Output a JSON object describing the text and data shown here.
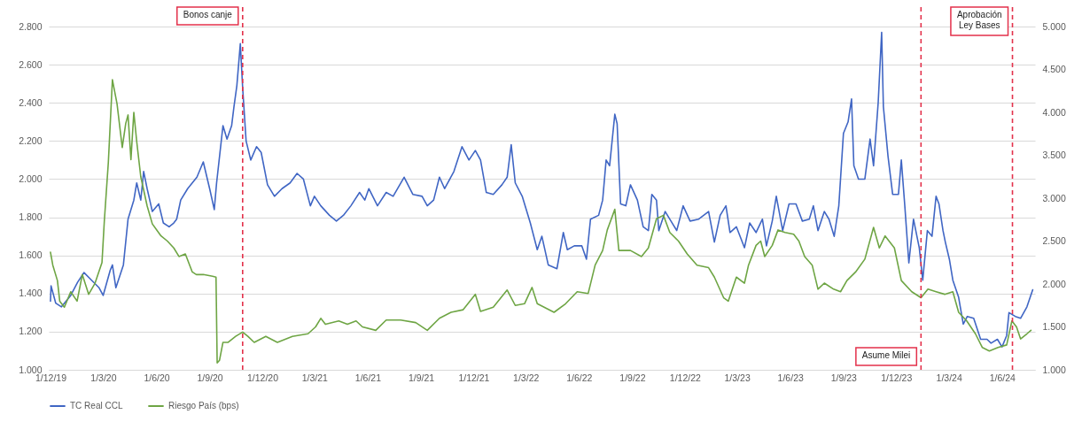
{
  "chart_data": {
    "type": "line",
    "xlim": [
      "2019-11-28",
      "2024-07-28"
    ],
    "xticks": [
      {
        "value": "2019-12-01",
        "label": "1/12/19"
      },
      {
        "value": "2020-03-01",
        "label": "1/3/20"
      },
      {
        "value": "2020-06-01",
        "label": "1/6/20"
      },
      {
        "value": "2020-09-01",
        "label": "1/9/20"
      },
      {
        "value": "2020-12-01",
        "label": "1/12/20"
      },
      {
        "value": "2021-03-01",
        "label": "1/3/21"
      },
      {
        "value": "2021-06-01",
        "label": "1/6/21"
      },
      {
        "value": "2021-09-01",
        "label": "1/9/21"
      },
      {
        "value": "2021-12-01",
        "label": "1/12/21"
      },
      {
        "value": "2022-03-01",
        "label": "1/3/22"
      },
      {
        "value": "2022-06-01",
        "label": "1/6/22"
      },
      {
        "value": "2022-09-01",
        "label": "1/9/22"
      },
      {
        "value": "2022-12-01",
        "label": "1/12/22"
      },
      {
        "value": "2023-03-01",
        "label": "1/3/23"
      },
      {
        "value": "2023-06-01",
        "label": "1/6/23"
      },
      {
        "value": "2023-09-01",
        "label": "1/9/23"
      },
      {
        "value": "2023-12-01",
        "label": "1/12/23"
      },
      {
        "value": "2024-03-01",
        "label": "1/3/24"
      },
      {
        "value": "2024-06-01",
        "label": "1/6/24"
      }
    ],
    "ylim": [
      1000,
      2800
    ],
    "yticks": [
      {
        "value": 1000,
        "label": "1.000"
      },
      {
        "value": 1200,
        "label": "1.200"
      },
      {
        "value": 1400,
        "label": "1.400"
      },
      {
        "value": 1600,
        "label": "1.600"
      },
      {
        "value": 1800,
        "label": "1.800"
      },
      {
        "value": 2000,
        "label": "2.000"
      },
      {
        "value": 2200,
        "label": "2.200"
      },
      {
        "value": 2400,
        "label": "2.400"
      },
      {
        "value": 2600,
        "label": "2.600"
      },
      {
        "value": 2800,
        "label": "2.800"
      }
    ],
    "y2lim": [
      1000,
      5000
    ],
    "y2ticks": [
      {
        "value": 1000,
        "label": "1.000"
      },
      {
        "value": 1500,
        "label": "1.500"
      },
      {
        "value": 2000,
        "label": "2.000"
      },
      {
        "value": 2500,
        "label": "2.500"
      },
      {
        "value": 3000,
        "label": "3.000"
      },
      {
        "value": 3500,
        "label": "3.500"
      },
      {
        "value": 4000,
        "label": "4.000"
      },
      {
        "value": 4500,
        "label": "4.500"
      },
      {
        "value": 5000,
        "label": "5.000"
      }
    ],
    "grid": "y",
    "legend": "bottom",
    "series": [
      {
        "name": "TC Real CCL",
        "color": "#4066c4",
        "x": [
          "2019-12-01",
          "2019-12-02",
          "2019-12-10",
          "2019-12-20",
          "2020-01-05",
          "2020-01-17",
          "2020-01-28",
          "2020-02-10",
          "2020-02-23",
          "2020-03-01",
          "2020-03-13",
          "2020-03-17",
          "2020-03-23",
          "2020-04-05",
          "2020-04-13",
          "2020-04-23",
          "2020-04-28",
          "2020-05-05",
          "2020-05-10",
          "2020-05-16",
          "2020-05-25",
          "2020-06-05",
          "2020-06-13",
          "2020-06-23",
          "2020-07-01",
          "2020-07-06",
          "2020-07-13",
          "2020-07-25",
          "2020-08-10",
          "2020-08-21",
          "2020-09-01",
          "2020-09-09",
          "2020-09-13",
          "2020-09-24",
          "2020-10-01",
          "2020-10-09",
          "2020-10-13",
          "2020-10-18",
          "2020-10-24",
          "2020-10-28",
          "2020-11-03",
          "2020-11-11",
          "2020-11-21",
          "2020-11-29",
          "2020-12-10",
          "2020-12-22",
          "2021-01-04",
          "2021-01-18",
          "2021-01-30",
          "2021-02-10",
          "2021-02-22",
          "2021-03-01",
          "2021-03-12",
          "2021-03-27",
          "2021-04-08",
          "2021-04-20",
          "2021-05-03",
          "2021-05-18",
          "2021-05-27",
          "2021-06-03",
          "2021-06-18",
          "2021-07-03",
          "2021-07-15",
          "2021-08-03",
          "2021-08-18",
          "2021-09-03",
          "2021-09-12",
          "2021-09-23",
          "2021-10-03",
          "2021-10-12",
          "2021-10-28",
          "2021-11-11",
          "2021-11-23",
          "2021-12-04",
          "2021-12-13",
          "2021-12-23",
          "2022-01-04",
          "2022-01-19",
          "2022-01-28",
          "2022-02-04",
          "2022-02-11",
          "2022-02-23",
          "2022-03-09",
          "2022-03-21",
          "2022-03-29",
          "2022-04-09",
          "2022-04-24",
          "2022-05-05",
          "2022-05-12",
          "2022-05-24",
          "2022-06-06",
          "2022-06-14",
          "2022-06-21",
          "2022-07-05",
          "2022-07-12",
          "2022-07-18",
          "2022-07-24",
          "2022-08-02",
          "2022-08-06",
          "2022-08-12",
          "2022-08-21",
          "2022-08-29",
          "2022-09-10",
          "2022-09-20",
          "2022-09-29",
          "2022-10-05",
          "2022-10-13",
          "2022-10-17",
          "2022-10-28",
          "2022-11-07",
          "2022-11-17",
          "2022-11-28",
          "2022-12-10",
          "2022-12-25",
          "2023-01-11",
          "2023-01-21",
          "2023-01-31",
          "2023-02-10",
          "2023-02-17",
          "2023-02-28",
          "2023-03-14",
          "2023-03-23",
          "2023-04-03",
          "2023-04-14",
          "2023-04-21",
          "2023-05-01",
          "2023-05-08",
          "2023-05-19",
          "2023-05-30",
          "2023-06-11",
          "2023-06-22",
          "2023-07-04",
          "2023-07-11",
          "2023-07-19",
          "2023-07-30",
          "2023-08-07",
          "2023-08-16",
          "2023-08-24",
          "2023-09-01",
          "2023-09-09",
          "2023-09-15",
          "2023-09-19",
          "2023-09-27",
          "2023-10-08",
          "2023-10-17",
          "2023-10-23",
          "2023-10-31",
          "2023-11-06",
          "2023-11-09",
          "2023-11-17",
          "2023-11-25",
          "2023-12-05",
          "2023-12-10",
          "2023-12-16",
          "2023-12-23",
          "2023-12-31",
          "2024-01-10",
          "2024-01-16",
          "2024-01-24",
          "2024-02-01",
          "2024-02-08",
          "2024-02-13",
          "2024-02-20",
          "2024-02-24",
          "2024-03-02",
          "2024-03-08",
          "2024-03-18",
          "2024-03-26",
          "2024-04-02",
          "2024-04-13",
          "2024-04-25",
          "2024-05-06",
          "2024-05-13",
          "2024-05-24",
          "2024-06-01",
          "2024-06-09",
          "2024-06-13",
          "2024-06-24",
          "2024-07-03",
          "2024-07-14",
          "2024-07-24"
        ],
        "values": [
          1360,
          1440,
          1350,
          1330,
          1390,
          1460,
          1510,
          1470,
          1430,
          1390,
          1520,
          1550,
          1430,
          1550,
          1790,
          1890,
          1980,
          1890,
          2040,
          1950,
          1830,
          1870,
          1770,
          1750,
          1770,
          1790,
          1890,
          1950,
          2010,
          2090,
          1950,
          1840,
          1980,
          2280,
          2210,
          2280,
          2380,
          2490,
          2710,
          2480,
          2200,
          2100,
          2170,
          2140,
          1970,
          1910,
          1950,
          1980,
          2030,
          2000,
          1860,
          1910,
          1860,
          1810,
          1780,
          1810,
          1860,
          1930,
          1890,
          1950,
          1860,
          1930,
          1910,
          2010,
          1920,
          1910,
          1860,
          1890,
          2010,
          1950,
          2040,
          2170,
          2100,
          2150,
          2100,
          1930,
          1920,
          1970,
          2010,
          2180,
          1980,
          1910,
          1770,
          1630,
          1700,
          1550,
          1530,
          1720,
          1630,
          1650,
          1650,
          1580,
          1790,
          1810,
          1890,
          2100,
          2070,
          2340,
          2290,
          1870,
          1860,
          1970,
          1890,
          1750,
          1730,
          1920,
          1890,
          1730,
          1830,
          1780,
          1730,
          1860,
          1780,
          1790,
          1830,
          1670,
          1810,
          1860,
          1720,
          1750,
          1640,
          1770,
          1720,
          1790,
          1650,
          1780,
          1910,
          1730,
          1870,
          1870,
          1780,
          1790,
          1860,
          1730,
          1830,
          1790,
          1700,
          1860,
          2240,
          2300,
          2420,
          2070,
          2000,
          2000,
          2210,
          2070,
          2400,
          2770,
          2380,
          2120,
          1920,
          1920,
          2100,
          1860,
          1560,
          1790,
          1640,
          1470,
          1730,
          1700,
          1910,
          1870,
          1730,
          1670,
          1580,
          1470,
          1380,
          1240,
          1280,
          1270,
          1160,
          1160,
          1140,
          1160,
          1120,
          1180,
          1300,
          1280,
          1270,
          1330,
          1420
        ]
      },
      {
        "name": "Riesgo País (bps)",
        "color": "#6ea544",
        "axis": "y2",
        "x": [
          "2019-12-01",
          "2019-12-05",
          "2019-12-13",
          "2019-12-17",
          "2019-12-25",
          "2020-01-05",
          "2020-01-16",
          "2020-01-25",
          "2020-02-05",
          "2020-02-16",
          "2020-02-28",
          "2020-03-03",
          "2020-03-10",
          "2020-03-17",
          "2020-03-25",
          "2020-04-03",
          "2020-04-09",
          "2020-04-13",
          "2020-04-18",
          "2020-04-23",
          "2020-04-28",
          "2020-05-05",
          "2020-05-16",
          "2020-05-25",
          "2020-06-09",
          "2020-06-20",
          "2020-07-01",
          "2020-07-10",
          "2020-07-21",
          "2020-08-02",
          "2020-08-09",
          "2020-08-21",
          "2020-09-06",
          "2020-09-12",
          "2020-09-14",
          "2020-09-18",
          "2020-09-24",
          "2020-10-03",
          "2020-10-16",
          "2020-10-28",
          "2020-11-06",
          "2020-11-17",
          "2020-12-07",
          "2020-12-27",
          "2021-01-22",
          "2021-02-18",
          "2021-03-03",
          "2021-03-12",
          "2021-03-20",
          "2021-04-12",
          "2021-04-27",
          "2021-05-12",
          "2021-05-23",
          "2021-06-15",
          "2021-07-03",
          "2021-07-28",
          "2021-08-23",
          "2021-09-12",
          "2021-10-03",
          "2021-10-23",
          "2021-11-13",
          "2021-12-04",
          "2021-12-13",
          "2022-01-04",
          "2022-01-28",
          "2022-02-11",
          "2022-02-27",
          "2022-03-12",
          "2022-03-21",
          "2022-04-19",
          "2022-05-09",
          "2022-05-29",
          "2022-06-17",
          "2022-06-29",
          "2022-07-12",
          "2022-07-20",
          "2022-08-02",
          "2022-08-09",
          "2022-08-29",
          "2022-09-17",
          "2022-09-29",
          "2022-10-13",
          "2022-10-25",
          "2022-11-05",
          "2022-11-20",
          "2022-12-05",
          "2022-12-22",
          "2023-01-11",
          "2023-01-21",
          "2023-02-06",
          "2023-02-14",
          "2023-02-28",
          "2023-03-14",
          "2023-03-21",
          "2023-04-03",
          "2023-04-11",
          "2023-04-18",
          "2023-05-01",
          "2023-05-11",
          "2023-05-23",
          "2023-06-07",
          "2023-06-16",
          "2023-06-26",
          "2023-07-09",
          "2023-07-19",
          "2023-07-30",
          "2023-08-15",
          "2023-08-27",
          "2023-09-07",
          "2023-09-22",
          "2023-10-08",
          "2023-10-23",
          "2023-11-02",
          "2023-11-12",
          "2023-11-28",
          "2023-12-10",
          "2023-12-28",
          "2024-01-13",
          "2024-01-25",
          "2024-02-08",
          "2024-02-23",
          "2024-03-08",
          "2024-03-18",
          "2024-04-01",
          "2024-04-16",
          "2024-04-28",
          "2024-05-10",
          "2024-05-25",
          "2024-06-09",
          "2024-06-18",
          "2024-06-26",
          "2024-07-03",
          "2024-07-14",
          "2024-07-21"
        ],
        "values": [
          2370,
          2220,
          2040,
          1800,
          1730,
          1910,
          1800,
          2110,
          1880,
          2010,
          2250,
          2730,
          3420,
          4380,
          4100,
          3590,
          3870,
          3970,
          3450,
          4000,
          3660,
          3250,
          2910,
          2700,
          2560,
          2500,
          2420,
          2320,
          2350,
          2140,
          2110,
          2110,
          2090,
          2080,
          1080,
          1110,
          1320,
          1320,
          1390,
          1440,
          1390,
          1320,
          1390,
          1320,
          1390,
          1420,
          1500,
          1600,
          1530,
          1570,
          1530,
          1570,
          1500,
          1460,
          1580,
          1580,
          1550,
          1460,
          1600,
          1670,
          1700,
          1880,
          1680,
          1730,
          1930,
          1750,
          1770,
          1960,
          1770,
          1670,
          1770,
          1910,
          1890,
          2220,
          2390,
          2630,
          2870,
          2390,
          2390,
          2320,
          2420,
          2760,
          2800,
          2600,
          2500,
          2350,
          2220,
          2190,
          2080,
          1840,
          1800,
          2080,
          2010,
          2220,
          2450,
          2500,
          2320,
          2450,
          2630,
          2600,
          2580,
          2500,
          2320,
          2220,
          1940,
          2010,
          1940,
          1910,
          2040,
          2140,
          2290,
          2660,
          2420,
          2560,
          2420,
          2040,
          1910,
          1840,
          1940,
          1910,
          1880,
          1910,
          1670,
          1570,
          1420,
          1260,
          1220,
          1260,
          1290,
          1570,
          1500,
          1360,
          1420,
          1460
        ]
      }
    ],
    "ref_lines": [
      {
        "axis": "x",
        "value": "2020-10-28",
        "label": "Bonos canje",
        "color": "#e3314b",
        "line_style": "dashed"
      },
      {
        "axis": "x",
        "value": "2024-01-13",
        "label": "Asume Milei",
        "color": "#e3314b",
        "line_style": "dashed"
      },
      {
        "axis": "x",
        "value": "2024-06-19",
        "label": "Aprobación Ley Bases",
        "color": "#e3314b",
        "line_style": "dashed"
      }
    ]
  }
}
